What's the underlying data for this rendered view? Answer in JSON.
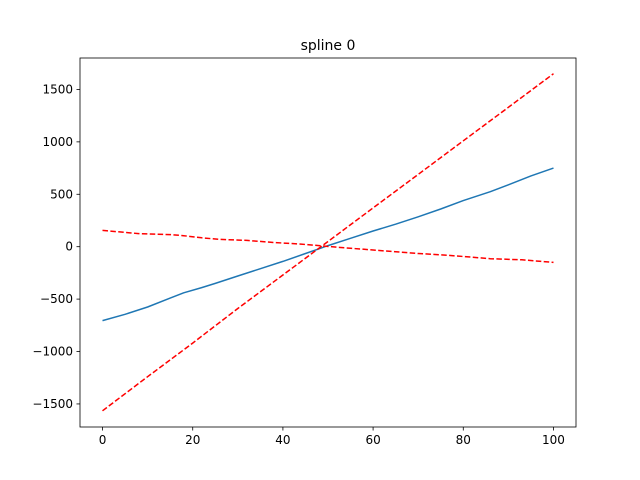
{
  "chart_data": {
    "type": "line",
    "title": "spline 0",
    "xlabel": "",
    "ylabel": "",
    "xlim": [
      -5,
      105
    ],
    "ylim": [
      -1720,
      1800
    ],
    "xticks": [
      0,
      20,
      40,
      60,
      80,
      100
    ],
    "yticks": [
      -1500,
      -1000,
      -500,
      0,
      500,
      1000,
      1500
    ],
    "xtick_labels": [
      "0",
      "20",
      "40",
      "60",
      "80",
      "100"
    ],
    "ytick_labels": [
      "−1500",
      "−1000",
      "−500",
      "0",
      "500",
      "1000",
      "1500"
    ],
    "grid": false,
    "series": [
      {
        "color": "#1f77b4",
        "style": "solid",
        "x": [
          0,
          5,
          10,
          15,
          18,
          22,
          25,
          30,
          35,
          40,
          45,
          48,
          50,
          55,
          60,
          65,
          70,
          75,
          80,
          86,
          90,
          95,
          100
        ],
        "y": [
          -705,
          -645,
          -575,
          -490,
          -440,
          -390,
          -350,
          -280,
          -210,
          -140,
          -65,
          -20,
          10,
          80,
          150,
          215,
          285,
          360,
          440,
          525,
          590,
          675,
          750
        ]
      },
      {
        "color": "#ff0000",
        "style": "dashed",
        "x": [
          0,
          10,
          20,
          30,
          40,
          50,
          60,
          70,
          80,
          90,
          100
        ],
        "y": [
          -1565,
          -1240,
          -920,
          -590,
          -270,
          50,
          370,
          690,
          1010,
          1330,
          1650
        ]
      },
      {
        "color": "#ff0000",
        "style": "dashed",
        "x": [
          0,
          8,
          15,
          18,
          22,
          26,
          32,
          38,
          44,
          48,
          52,
          58,
          64,
          70,
          76,
          82,
          86,
          93,
          100
        ],
        "y": [
          155,
          125,
          115,
          105,
          85,
          70,
          60,
          40,
          25,
          10,
          -5,
          -25,
          -45,
          -65,
          -80,
          -100,
          -115,
          -125,
          -150
        ]
      }
    ]
  }
}
